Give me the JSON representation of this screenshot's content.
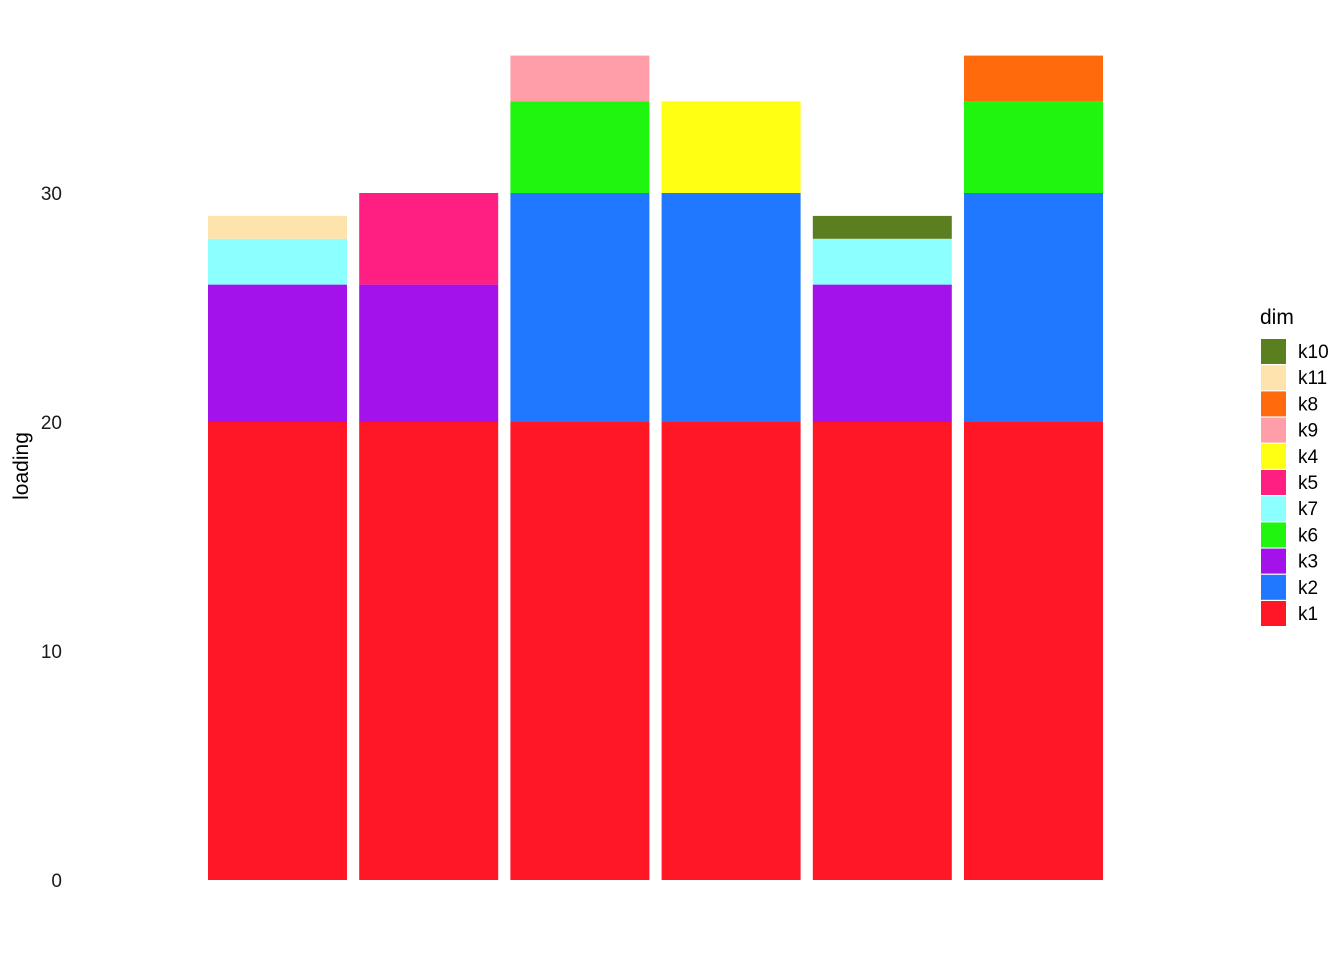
{
  "chart_data": {
    "type": "bar",
    "stacked": true,
    "ylabel": "loading",
    "ylim": [
      0,
      36
    ],
    "yticks": [
      "0",
      "10",
      "20",
      "30"
    ],
    "grid": false,
    "legend": {
      "title": "dim",
      "position": "right",
      "entries": [
        {
          "name": "k10",
          "color": "#5b7f1e"
        },
        {
          "name": "k11",
          "color": "#ffe3ad"
        },
        {
          "name": "k8",
          "color": "#ff6a0d"
        },
        {
          "name": "k9",
          "color": "#ff9ea8"
        },
        {
          "name": "k4",
          "color": "#ffff14"
        },
        {
          "name": "k5",
          "color": "#ff1f82"
        },
        {
          "name": "k7",
          "color": "#8cffff"
        },
        {
          "name": "k6",
          "color": "#1ff50f"
        },
        {
          "name": "k3",
          "color": "#a312eb"
        },
        {
          "name": "k2",
          "color": "#1f78ff"
        },
        {
          "name": "k1",
          "color": "#ff1726"
        }
      ]
    },
    "bars": [
      {
        "segments": [
          {
            "dim": "k1",
            "value": 20
          },
          {
            "dim": "k3",
            "value": 6
          },
          {
            "dim": "k7",
            "value": 2
          },
          {
            "dim": "k11",
            "value": 1
          }
        ]
      },
      {
        "segments": [
          {
            "dim": "k1",
            "value": 20
          },
          {
            "dim": "k3",
            "value": 6
          },
          {
            "dim": "k5",
            "value": 4
          }
        ]
      },
      {
        "segments": [
          {
            "dim": "k1",
            "value": 20
          },
          {
            "dim": "k2",
            "value": 10
          },
          {
            "dim": "k6",
            "value": 4
          },
          {
            "dim": "k9",
            "value": 2
          }
        ]
      },
      {
        "segments": [
          {
            "dim": "k1",
            "value": 20
          },
          {
            "dim": "k2",
            "value": 10
          },
          {
            "dim": "k4",
            "value": 4
          }
        ]
      },
      {
        "segments": [
          {
            "dim": "k1",
            "value": 20
          },
          {
            "dim": "k3",
            "value": 6
          },
          {
            "dim": "k7",
            "value": 2
          },
          {
            "dim": "k10",
            "value": 1
          }
        ]
      },
      {
        "segments": [
          {
            "dim": "k1",
            "value": 20
          },
          {
            "dim": "k2",
            "value": 10
          },
          {
            "dim": "k6",
            "value": 4
          },
          {
            "dim": "k8",
            "value": 2
          }
        ]
      }
    ]
  }
}
